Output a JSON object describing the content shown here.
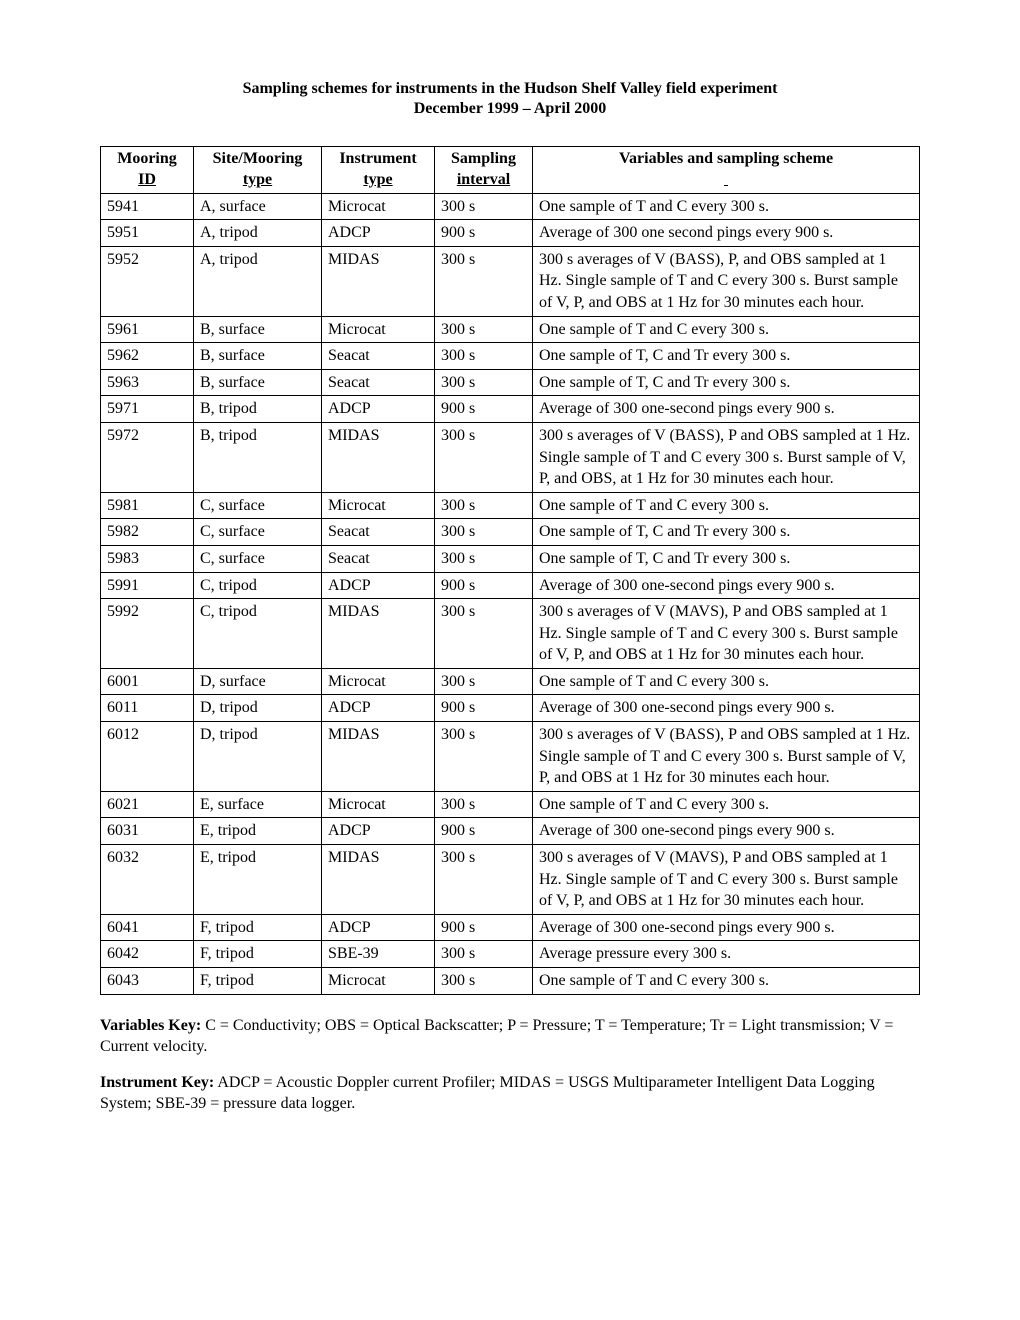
{
  "title": "Sampling schemes for instruments in the Hudson Shelf Valley field experiment",
  "subtitle": "December 1999 – April 2000",
  "headers": {
    "mooring": {
      "l1": "Mooring",
      "l2": "ID"
    },
    "site": {
      "l1": "Site/Mooring",
      "l2": "type"
    },
    "instrument": {
      "l1": "Instrument",
      "l2": "type"
    },
    "interval": {
      "l1": "Sampling",
      "l2": "interval"
    },
    "scheme": "Variables and sampling scheme"
  },
  "rows": [
    {
      "id": "5941",
      "site": "A, surface",
      "inst": "Microcat",
      "int": "300 s",
      "scheme": "One sample of T and C every 300 s."
    },
    {
      "id": "5951",
      "site": "A, tripod",
      "inst": "ADCP",
      "int": "900 s",
      "scheme": "Average of 300 one second pings every 900 s."
    },
    {
      "id": "5952",
      "site": "A, tripod",
      "inst": "MIDAS",
      "int": "300 s",
      "scheme": "300 s averages of V (BASS), P, and OBS sampled at 1 Hz.  Single sample of T and C every 300 s.  Burst sample of V, P, and OBS at 1 Hz for 30 minutes each hour."
    },
    {
      "id": "5961",
      "site": "B, surface",
      "inst": "Microcat",
      "int": "300 s",
      "scheme": "One sample of T and C every 300 s."
    },
    {
      "id": "5962",
      "site": "B, surface",
      "inst": "Seacat",
      "int": "300 s",
      "scheme": "One sample of T, C and Tr every 300 s."
    },
    {
      "id": "5963",
      "site": "B, surface",
      "inst": "Seacat",
      "int": "300 s",
      "scheme": "One sample of T, C and Tr every 300 s."
    },
    {
      "id": "5971",
      "site": "B, tripod",
      "inst": "ADCP",
      "int": "900 s",
      "scheme": "Average of 300 one-second pings every 900 s."
    },
    {
      "id": "5972",
      "site": "B, tripod",
      "inst": "MIDAS",
      "int": "300 s",
      "scheme": "300 s averages of V (BASS), P and OBS sampled at 1 Hz.  Single sample of T and C every 300 s.  Burst sample of V, P, and OBS, at 1 Hz for 30 minutes each hour."
    },
    {
      "id": "5981",
      "site": "C, surface",
      "inst": "Microcat",
      "int": "300 s",
      "scheme": "One sample of T and C every 300 s."
    },
    {
      "id": "5982",
      "site": "C, surface",
      "inst": "Seacat",
      "int": "300 s",
      "scheme": "One sample of T, C and Tr every 300 s."
    },
    {
      "id": "5983",
      "site": "C, surface",
      "inst": "Seacat",
      "int": "300 s",
      "scheme": "One sample of T, C and Tr every 300 s."
    },
    {
      "id": "5991",
      "site": "C, tripod",
      "inst": "ADCP",
      "int": "900 s",
      "scheme": "Average of 300 one-second pings every 900 s."
    },
    {
      "id": "5992",
      "site": "C, tripod",
      "inst": "MIDAS",
      "int": "300 s",
      "scheme": "300 s averages of V (MAVS), P and OBS sampled at 1 Hz.  Single sample of T and C every 300 s.  Burst sample of V, P, and OBS at 1 Hz for 30 minutes each hour."
    },
    {
      "id": "6001",
      "site": "D, surface",
      "inst": "Microcat",
      "int": "300 s",
      "scheme": "One sample of T and C every 300 s."
    },
    {
      "id": "6011",
      "site": "D, tripod",
      "inst": "ADCP",
      "int": "900 s",
      "scheme": "Average of 300 one-second pings every 900 s."
    },
    {
      "id": "6012",
      "site": "D, tripod",
      "inst": "MIDAS",
      "int": "300 s",
      "scheme": "300 s averages of V (BASS), P and OBS sampled at 1 Hz.  Single sample of T and C every 300 s.  Burst sample of V, P, and OBS at 1 Hz for 30 minutes each hour."
    },
    {
      "id": "6021",
      "site": "E, surface",
      "inst": "Microcat",
      "int": "300 s",
      "scheme": "One sample of T and C every 300 s."
    },
    {
      "id": "6031",
      "site": "E, tripod",
      "inst": "ADCP",
      "int": "900 s",
      "scheme": "Average of 300 one-second pings every 900 s."
    },
    {
      "id": "6032",
      "site": "E, tripod",
      "inst": "MIDAS",
      "int": "300 s",
      "scheme": "300 s averages of V (MAVS), P and OBS sampled at 1 Hz.  Single sample of T and C every 300 s.  Burst sample of V, P, and OBS at 1 Hz for 30 minutes each hour."
    },
    {
      "id": "6041",
      "site": "F, tripod",
      "inst": "ADCP",
      "int": "900 s",
      "scheme": "Average of 300 one-second pings every 900 s."
    },
    {
      "id": "6042",
      "site": "F, tripod",
      "inst": "SBE-39",
      "int": "300 s",
      "scheme": "Average pressure every 300 s."
    },
    {
      "id": "6043",
      "site": "F, tripod",
      "inst": "Microcat",
      "int": "300 s",
      "scheme": "One sample of T and C every 300 s."
    }
  ],
  "variablesKey": {
    "label": "Variables Key:",
    "text": "  C = Conductivity; OBS = Optical Backscatter; P = Pressure; T = Temperature; Tr = Light transmission; V = Current velocity."
  },
  "instrumentKey": {
    "label": "Instrument Key:",
    "text": "  ADCP = Acoustic Doppler current Profiler; MIDAS = USGS Multiparameter Intelligent Data Logging System; SBE-39 = pressure data logger."
  }
}
